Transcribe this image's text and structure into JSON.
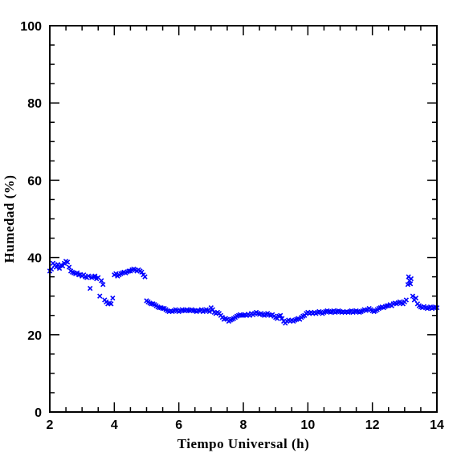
{
  "chart_data": {
    "type": "scatter",
    "title": "",
    "xlabel": "Tiempo Universal (h)",
    "ylabel": "Humedad (%)",
    "xlim": [
      2,
      14
    ],
    "ylim": [
      0,
      100
    ],
    "x_ticks": [
      2,
      4,
      6,
      8,
      10,
      12,
      14
    ],
    "y_ticks": [
      0,
      20,
      40,
      60,
      80,
      100
    ],
    "grid": false,
    "marker": "x",
    "series": [
      {
        "color": "#0000ff",
        "points": [
          [
            2.0,
            36.5
          ],
          [
            2.05,
            37.0
          ],
          [
            2.1,
            38.5
          ],
          [
            2.15,
            38.0
          ],
          [
            2.2,
            37.5
          ],
          [
            2.25,
            38.2
          ],
          [
            2.3,
            37.2
          ],
          [
            2.35,
            38.0
          ],
          [
            2.4,
            37.8
          ],
          [
            2.45,
            38.5
          ],
          [
            2.5,
            39.0
          ],
          [
            2.55,
            38.8
          ],
          [
            2.6,
            37.5
          ],
          [
            2.65,
            36.5
          ],
          [
            2.7,
            36.2
          ],
          [
            2.75,
            36.0
          ],
          [
            2.8,
            35.8
          ],
          [
            2.85,
            36.0
          ],
          [
            2.9,
            35.5
          ],
          [
            2.95,
            35.6
          ],
          [
            3.0,
            35.2
          ],
          [
            3.05,
            35.5
          ],
          [
            3.1,
            35.0
          ],
          [
            3.15,
            34.8
          ],
          [
            3.2,
            35.2
          ],
          [
            3.25,
            32.0
          ],
          [
            3.3,
            34.8
          ],
          [
            3.35,
            35.0
          ],
          [
            3.4,
            35.2
          ],
          [
            3.45,
            34.5
          ],
          [
            3.5,
            34.8
          ],
          [
            3.55,
            30.0
          ],
          [
            3.6,
            34.0
          ],
          [
            3.65,
            33.0
          ],
          [
            3.7,
            29.0
          ],
          [
            3.75,
            28.5
          ],
          [
            3.8,
            28.0
          ],
          [
            3.85,
            28.2
          ],
          [
            3.9,
            28.0
          ],
          [
            3.95,
            29.5
          ],
          [
            4.0,
            35.5
          ],
          [
            4.05,
            35.8
          ],
          [
            4.1,
            35.2
          ],
          [
            4.15,
            35.5
          ],
          [
            4.2,
            35.8
          ],
          [
            4.25,
            36.0
          ],
          [
            4.3,
            36.2
          ],
          [
            4.35,
            36.0
          ],
          [
            4.4,
            36.3
          ],
          [
            4.45,
            36.5
          ],
          [
            4.5,
            36.5
          ],
          [
            4.55,
            36.8
          ],
          [
            4.6,
            37.0
          ],
          [
            4.65,
            36.8
          ],
          [
            4.7,
            36.5
          ],
          [
            4.75,
            36.8
          ],
          [
            4.8,
            36.5
          ],
          [
            4.85,
            36.2
          ],
          [
            4.9,
            35.5
          ],
          [
            4.95,
            35.0
          ],
          [
            5.0,
            28.8
          ],
          [
            5.05,
            28.5
          ],
          [
            5.1,
            28.2
          ],
          [
            5.15,
            28.0
          ],
          [
            5.2,
            28.0
          ],
          [
            5.25,
            27.8
          ],
          [
            5.3,
            27.5
          ],
          [
            5.35,
            27.2
          ],
          [
            5.4,
            27.0
          ],
          [
            5.45,
            27.0
          ],
          [
            5.5,
            26.8
          ],
          [
            5.55,
            26.8
          ],
          [
            5.6,
            26.5
          ],
          [
            5.65,
            26.2
          ],
          [
            5.7,
            26.0
          ],
          [
            5.75,
            26.2
          ],
          [
            5.8,
            26.0
          ],
          [
            5.85,
            26.2
          ],
          [
            5.9,
            26.5
          ],
          [
            5.95,
            26.3
          ],
          [
            6.0,
            26.0
          ],
          [
            6.05,
            26.2
          ],
          [
            6.1,
            26.5
          ],
          [
            6.15,
            26.3
          ],
          [
            6.2,
            26.2
          ],
          [
            6.25,
            26.5
          ],
          [
            6.3,
            26.3
          ],
          [
            6.35,
            26.2
          ],
          [
            6.4,
            26.5
          ],
          [
            6.45,
            26.3
          ],
          [
            6.5,
            26.2
          ],
          [
            6.55,
            26.0
          ],
          [
            6.6,
            26.3
          ],
          [
            6.65,
            26.2
          ],
          [
            6.7,
            26.5
          ],
          [
            6.75,
            26.0
          ],
          [
            6.8,
            26.2
          ],
          [
            6.85,
            26.5
          ],
          [
            6.9,
            26.3
          ],
          [
            6.95,
            26.0
          ],
          [
            7.0,
            27.0
          ],
          [
            7.05,
            26.5
          ],
          [
            7.1,
            25.8
          ],
          [
            7.15,
            25.5
          ],
          [
            7.2,
            25.8
          ],
          [
            7.25,
            25.5
          ],
          [
            7.3,
            25.0
          ],
          [
            7.35,
            24.5
          ],
          [
            7.4,
            24.0
          ],
          [
            7.45,
            24.2
          ],
          [
            7.5,
            24.0
          ],
          [
            7.55,
            23.5
          ],
          [
            7.6,
            23.8
          ],
          [
            7.65,
            24.0
          ],
          [
            7.7,
            24.2
          ],
          [
            7.75,
            24.5
          ],
          [
            7.8,
            24.8
          ],
          [
            7.85,
            25.0
          ],
          [
            7.9,
            25.2
          ],
          [
            7.95,
            25.0
          ],
          [
            8.0,
            25.0
          ],
          [
            8.05,
            25.2
          ],
          [
            8.1,
            25.0
          ],
          [
            8.15,
            25.3
          ],
          [
            8.2,
            25.0
          ],
          [
            8.25,
            25.5
          ],
          [
            8.3,
            25.2
          ],
          [
            8.35,
            25.5
          ],
          [
            8.4,
            25.8
          ],
          [
            8.45,
            25.5
          ],
          [
            8.5,
            25.3
          ],
          [
            8.55,
            25.5
          ],
          [
            8.6,
            25.2
          ],
          [
            8.65,
            25.0
          ],
          [
            8.7,
            25.3
          ],
          [
            8.75,
            25.5
          ],
          [
            8.8,
            25.2
          ],
          [
            8.85,
            25.0
          ],
          [
            8.9,
            25.2
          ],
          [
            8.95,
            24.8
          ],
          [
            9.0,
            24.5
          ],
          [
            9.05,
            24.2
          ],
          [
            9.1,
            24.8
          ],
          [
            9.15,
            25.0
          ],
          [
            9.2,
            24.2
          ],
          [
            9.25,
            23.5
          ],
          [
            9.3,
            23.0
          ],
          [
            9.35,
            23.5
          ],
          [
            9.4,
            23.8
          ],
          [
            9.45,
            23.5
          ],
          [
            9.5,
            23.8
          ],
          [
            9.55,
            23.5
          ],
          [
            9.6,
            23.8
          ],
          [
            9.65,
            24.0
          ],
          [
            9.7,
            24.2
          ],
          [
            9.75,
            24.0
          ],
          [
            9.8,
            24.5
          ],
          [
            9.85,
            24.8
          ],
          [
            9.9,
            25.0
          ],
          [
            9.95,
            25.5
          ],
          [
            10.0,
            25.8
          ],
          [
            10.05,
            25.5
          ],
          [
            10.1,
            25.8
          ],
          [
            10.15,
            25.5
          ],
          [
            10.2,
            25.8
          ],
          [
            10.25,
            25.5
          ],
          [
            10.3,
            25.8
          ],
          [
            10.35,
            26.0
          ],
          [
            10.4,
            25.8
          ],
          [
            10.45,
            25.5
          ],
          [
            10.5,
            25.8
          ],
          [
            10.55,
            26.0
          ],
          [
            10.6,
            26.2
          ],
          [
            10.65,
            26.0
          ],
          [
            10.7,
            25.8
          ],
          [
            10.75,
            26.0
          ],
          [
            10.8,
            26.2
          ],
          [
            10.85,
            25.8
          ],
          [
            10.9,
            26.0
          ],
          [
            10.95,
            26.2
          ],
          [
            11.0,
            26.0
          ],
          [
            11.05,
            25.8
          ],
          [
            11.1,
            26.0
          ],
          [
            11.15,
            25.8
          ],
          [
            11.2,
            26.0
          ],
          [
            11.25,
            25.8
          ],
          [
            11.3,
            26.0
          ],
          [
            11.35,
            26.2
          ],
          [
            11.4,
            25.8
          ],
          [
            11.45,
            26.0
          ],
          [
            11.5,
            26.2
          ],
          [
            11.55,
            26.0
          ],
          [
            11.6,
            25.8
          ],
          [
            11.65,
            26.0
          ],
          [
            11.7,
            26.2
          ],
          [
            11.75,
            26.5
          ],
          [
            11.8,
            26.3
          ],
          [
            11.85,
            26.5
          ],
          [
            11.9,
            26.8
          ],
          [
            11.95,
            26.5
          ],
          [
            12.0,
            26.2
          ],
          [
            12.05,
            26.0
          ],
          [
            12.1,
            26.2
          ],
          [
            12.15,
            26.5
          ],
          [
            12.2,
            26.8
          ],
          [
            12.25,
            27.0
          ],
          [
            12.3,
            27.2
          ],
          [
            12.35,
            27.0
          ],
          [
            12.4,
            27.3
          ],
          [
            12.45,
            27.5
          ],
          [
            12.5,
            27.5
          ],
          [
            12.55,
            27.8
          ],
          [
            12.6,
            27.5
          ],
          [
            12.65,
            28.0
          ],
          [
            12.7,
            28.2
          ],
          [
            12.75,
            28.0
          ],
          [
            12.8,
            28.3
          ],
          [
            12.85,
            28.5
          ],
          [
            12.9,
            28.2
          ],
          [
            12.95,
            28.0
          ],
          [
            13.0,
            28.5
          ],
          [
            13.05,
            29.0
          ],
          [
            13.1,
            33.0
          ],
          [
            13.12,
            35.0
          ],
          [
            13.15,
            34.0
          ],
          [
            13.18,
            33.2
          ],
          [
            13.2,
            34.5
          ],
          [
            13.25,
            30.0
          ],
          [
            13.3,
            29.0
          ],
          [
            13.35,
            29.5
          ],
          [
            13.4,
            28.0
          ],
          [
            13.45,
            27.5
          ],
          [
            13.5,
            27.2
          ],
          [
            13.55,
            27.0
          ],
          [
            13.6,
            27.3
          ],
          [
            13.65,
            27.0
          ],
          [
            13.7,
            26.8
          ],
          [
            13.75,
            27.0
          ],
          [
            13.8,
            27.2
          ],
          [
            13.85,
            26.8
          ],
          [
            13.9,
            27.0
          ],
          [
            13.95,
            27.2
          ],
          [
            14.0,
            27.0
          ]
        ]
      }
    ]
  }
}
